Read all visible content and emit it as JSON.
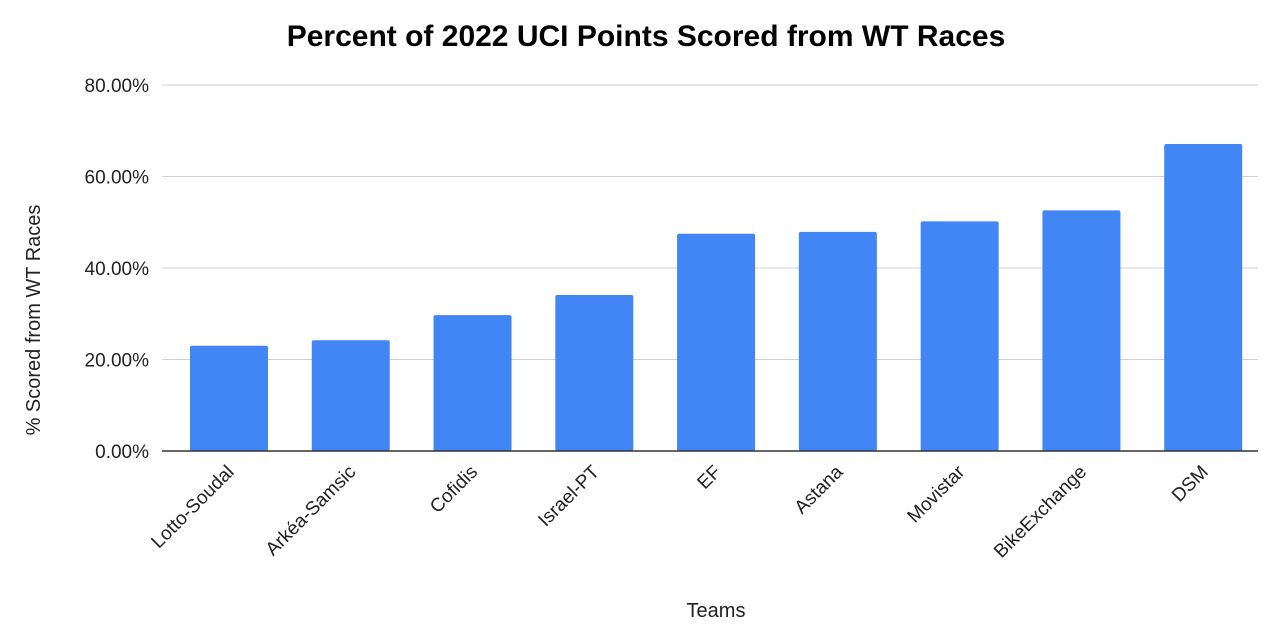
{
  "chart_data": {
    "type": "bar",
    "title": "Percent of 2022 UCI Points Scored from WT Races",
    "xlabel": "Teams",
    "ylabel": "% Scored from WT Races",
    "categories": [
      "Lotto-Soudal",
      "Arkéa-Samsic",
      "Cofidis",
      "Israel-PT",
      "EF",
      "Astana",
      "Movistar",
      "BikeExchange",
      "DSM"
    ],
    "values": [
      23.0,
      24.2,
      29.7,
      34.1,
      47.5,
      47.9,
      50.2,
      52.6,
      67.1
    ],
    "ylim": [
      0,
      80
    ],
    "yticks": [
      0,
      20,
      40,
      60,
      80
    ],
    "ytick_labels": [
      "0.00%",
      "20.00%",
      "40.00%",
      "60.00%",
      "80.00%"
    ],
    "bar_color": "#4285F4",
    "grid": true,
    "legend": "none"
  }
}
